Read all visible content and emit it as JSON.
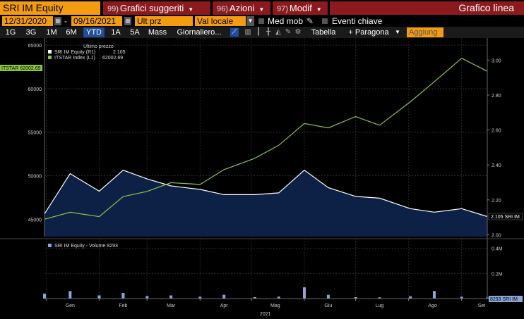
{
  "header": {
    "ticker": "SRI IM Equity",
    "menus": [
      {
        "num": "99)",
        "label": "Grafici suggeriti"
      },
      {
        "num": "96)",
        "label": "Azioni"
      },
      {
        "num": "97)",
        "label": "Modif"
      }
    ],
    "title": "Grafico linea"
  },
  "controls": {
    "start_date": "12/31/2020",
    "end_date": "09/16/2021",
    "price_field": "Ult prz",
    "currency": "Val locale",
    "moving_avg_label": "Med mob",
    "key_events_label": "Eventi chiave"
  },
  "toolbar": {
    "ranges": [
      "1G",
      "3G",
      "1M",
      "6M",
      "YTD",
      "1A",
      "5A",
      "Mass"
    ],
    "selected_range": "YTD",
    "frequency": "Giornaliero...",
    "table_label": "Tabella",
    "compare_label": "+ Paragona",
    "add_label": "Aggiung"
  },
  "legend": {
    "header": "Ultimo prezzo",
    "entries": [
      {
        "name": "SRI IM Equity (R1)",
        "value": "2.105",
        "color": "#ffffff"
      },
      {
        "name": "ITSTAR Index (L1)",
        "value": "62002.69",
        "color": "#8cc63f"
      }
    ]
  },
  "badges": {
    "left_last": "ITSTAR 62002.69",
    "right_last": "2.105 SRI IM",
    "volume_last": "8293 SRI IM"
  },
  "volume_legend": "SRI IM Equity - Volume 8293",
  "x_axis": {
    "months": [
      "Gen",
      "Feb",
      "Mar",
      "Apr",
      "Mag",
      "Giu",
      "Lug",
      "Ago",
      "Set"
    ],
    "year": "2021"
  },
  "colors": {
    "accent": "#f39c12",
    "menu": "#8b1a1f",
    "selected": "#1f4e9c",
    "index_line": "#8cc63f",
    "area_fill": "#0d2147"
  },
  "chart_data": {
    "type": "line",
    "x": [
      "2020-12-31",
      "2021-01-15",
      "2021-02-01",
      "2021-02-15",
      "2021-03-01",
      "2021-03-15",
      "2021-04-01",
      "2021-04-15",
      "2021-05-03",
      "2021-05-17",
      "2021-06-01",
      "2021-06-15",
      "2021-07-01",
      "2021-07-15",
      "2021-08-02",
      "2021-08-16",
      "2021-09-01",
      "2021-09-16"
    ],
    "series": [
      {
        "name": "SRI IM Equity (R1)",
        "axis": "right",
        "values": [
          2.12,
          2.35,
          2.25,
          2.37,
          2.32,
          2.28,
          2.26,
          2.23,
          2.23,
          2.24,
          2.37,
          2.27,
          2.22,
          2.21,
          2.15,
          2.13,
          2.15,
          2.105
        ]
      },
      {
        "name": "ITSTAR Index (L1)",
        "axis": "left",
        "values": [
          45000,
          45800,
          45300,
          47600,
          48200,
          49200,
          49000,
          50700,
          52000,
          53500,
          56000,
          55500,
          56800,
          55800,
          58500,
          60800,
          63500,
          62002.69
        ]
      },
      {
        "name": "SRI IM Equity - Volume",
        "axis": "volume",
        "values": [
          40000,
          60000,
          25000,
          45000,
          20000,
          25000,
          15000,
          30000,
          12000,
          15000,
          90000,
          30000,
          12000,
          10000,
          18000,
          60000,
          15000,
          8293
        ]
      }
    ],
    "left_axis": {
      "ticks": [
        45000,
        50000,
        55000,
        60000,
        65000
      ],
      "ylim": [
        43000,
        65500
      ]
    },
    "right_axis": {
      "ticks": [
        2.0,
        2.2,
        2.4,
        2.6,
        2.8,
        3.0
      ],
      "ylim": [
        1.99,
        3.11
      ]
    },
    "volume_axis": {
      "ticks": [
        "0.2M",
        "0.4M"
      ],
      "ylim": [
        0,
        0.46
      ]
    }
  }
}
